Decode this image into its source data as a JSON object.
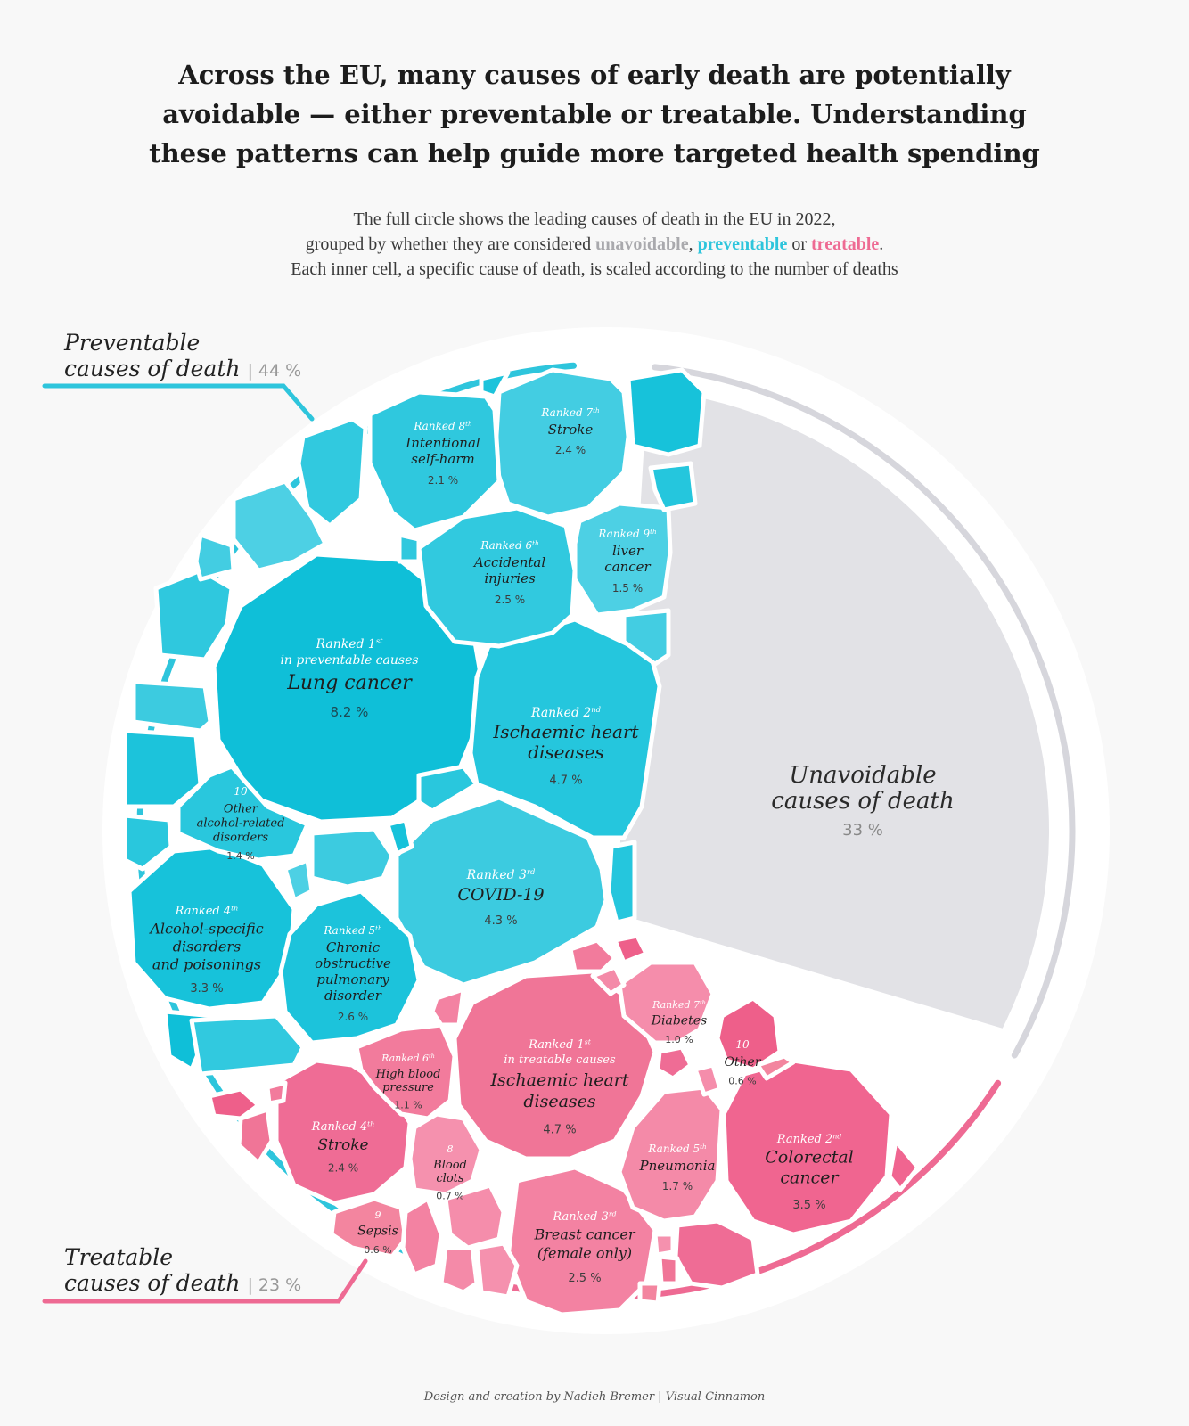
{
  "title_lines": [
    "Across the EU, many causes of early death are potentially",
    "avoidable — either preventable or treatable. Understanding",
    "these patterns can help guide more targeted health spending"
  ],
  "subtitle": {
    "line1": "The full circle shows the leading causes of death in the EU in 2022,",
    "line2_pre": "grouped by whether they are considered ",
    "kw_unavoidable": "unavoidable",
    "sep1": ", ",
    "kw_preventable": "preventable",
    "sep2": " or ",
    "kw_treatable": "treatable",
    "end": ".",
    "line3": "Each inner cell, a specific cause of death, is scaled according to the number of deaths"
  },
  "groups": {
    "preventable": {
      "line1": "Preventable",
      "line2": "causes of death",
      "pct": "44 %"
    },
    "treatable": {
      "line1": "Treatable",
      "line2": "causes of death",
      "pct": "23 %"
    },
    "unavoidable": {
      "line1": "Unavoidable",
      "line2": "causes of death",
      "pct": "33 %"
    }
  },
  "colors": {
    "preventable": "#2ec5dc",
    "treatable": "#ee6a93",
    "unavoidable": "#e2e2e6",
    "ring": "#d6d6dc"
  },
  "chart_data": {
    "type": "voronoi-treemap",
    "title": "Leading causes of death in the EU in 2022",
    "groups": [
      {
        "name": "Unavoidable causes of death",
        "share": 33
      },
      {
        "name": "Preventable causes of death",
        "share": 44
      },
      {
        "name": "Treatable causes of death",
        "share": 23
      }
    ],
    "preventable": [
      {
        "rank": "Ranked 1",
        "suffix": "st",
        "sub": "in preventable causes",
        "name": "Lung cancer",
        "pct": "8.2 %",
        "value": 8.2
      },
      {
        "rank": "Ranked 2",
        "suffix": "nd",
        "name": "Ischaemic heart diseases",
        "pct": "4.7 %",
        "value": 4.7
      },
      {
        "rank": "Ranked 3",
        "suffix": "rd",
        "name": "COVID-19",
        "pct": "4.3 %",
        "value": 4.3
      },
      {
        "rank": "Ranked 4",
        "suffix": "th",
        "name": "Alcohol-specific disorders and poisonings",
        "pct": "3.3 %",
        "value": 3.3
      },
      {
        "rank": "Ranked 5",
        "suffix": "th",
        "name": "Chronic obstructive pulmonary disorder",
        "pct": "2.6 %",
        "value": 2.6
      },
      {
        "rank": "Ranked 6",
        "suffix": "th",
        "name": "Accidental injuries",
        "pct": "2.5 %",
        "value": 2.5
      },
      {
        "rank": "Ranked 7",
        "suffix": "th",
        "name": "Stroke",
        "pct": "2.4 %",
        "value": 2.4
      },
      {
        "rank": "Ranked 8",
        "suffix": "th",
        "name": "Intentional self-harm",
        "pct": "2.1 %",
        "value": 2.1
      },
      {
        "rank": "Ranked 9",
        "suffix": "th",
        "name": "liver cancer",
        "pct": "1.5 %",
        "value": 1.5
      },
      {
        "rank": "10",
        "suffix": "",
        "name": "Other alcohol-related disorders",
        "pct": "1.4 %",
        "value": 1.4
      }
    ],
    "treatable": [
      {
        "rank": "Ranked 1",
        "suffix": "st",
        "sub": "in treatable causes",
        "name": "Ischaemic heart diseases",
        "pct": "4.7 %",
        "value": 4.7
      },
      {
        "rank": "Ranked 2",
        "suffix": "nd",
        "name": "Colorectal cancer",
        "pct": "3.5 %",
        "value": 3.5
      },
      {
        "rank": "Ranked 3",
        "suffix": "rd",
        "name": "Breast cancer (female only)",
        "pct": "2.5 %",
        "value": 2.5
      },
      {
        "rank": "Ranked 4",
        "suffix": "th",
        "name": "Stroke",
        "pct": "2.4 %",
        "value": 2.4
      },
      {
        "rank": "Ranked 5",
        "suffix": "th",
        "name": "Pneumonia",
        "pct": "1.7 %",
        "value": 1.7
      },
      {
        "rank": "Ranked 6",
        "suffix": "th",
        "name": "High blood pressure",
        "pct": "1.1 %",
        "value": 1.1
      },
      {
        "rank": "Ranked 7",
        "suffix": "th",
        "name": "Diabetes",
        "pct": "1.0 %",
        "value": 1.0
      },
      {
        "rank": "8",
        "suffix": "",
        "name": "Blood clots",
        "pct": "0.7 %",
        "value": 0.7
      },
      {
        "rank": "9",
        "suffix": "",
        "name": "Sepsis",
        "pct": "0.6 %",
        "value": 0.6
      },
      {
        "rank": "10",
        "suffix": "",
        "name": "Other",
        "pct": "0.6 %",
        "value": 0.6
      }
    ]
  },
  "credit": "Design and creation by Nadieh Bremer | Visual Cinnamon"
}
